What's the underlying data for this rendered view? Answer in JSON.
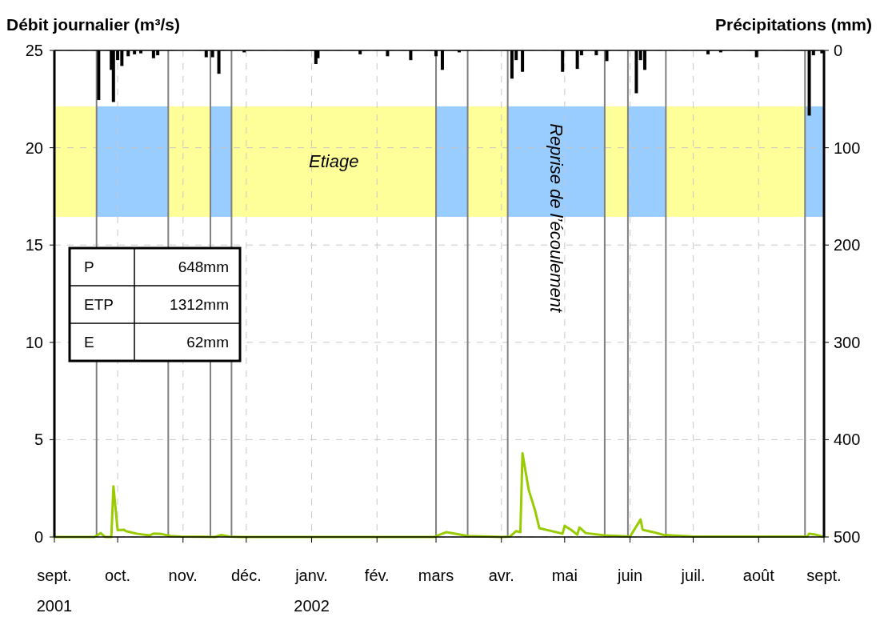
{
  "chart_data": {
    "type": "line",
    "ylabel": "Débit journalier (m³/s)",
    "y2label": "Précipitations (mm)",
    "xlim": [
      "2001-09-01",
      "2002-09-01"
    ],
    "xticks": [
      {
        "value": "2001-09-01",
        "label": "sept.\n2001"
      },
      {
        "value": "2001-10-01",
        "label": "oct."
      },
      {
        "value": "2001-11-01",
        "label": "nov."
      },
      {
        "value": "2001-12-01",
        "label": "déc."
      },
      {
        "value": "2002-01-01",
        "label": "janv.\n2002"
      },
      {
        "value": "2002-02-01",
        "label": "fév."
      },
      {
        "value": "2002-03-01",
        "label": "mars"
      },
      {
        "value": "2002-04-01",
        "label": "avr."
      },
      {
        "value": "2002-05-01",
        "label": "mai"
      },
      {
        "value": "2002-06-01",
        "label": "juin"
      },
      {
        "value": "2002-07-01",
        "label": "juil."
      },
      {
        "value": "2002-08-01",
        "label": "août"
      },
      {
        "value": "2002-09-01",
        "label": "sept."
      }
    ],
    "ylim": [
      0,
      25
    ],
    "yticks": [
      0,
      5,
      10,
      15,
      20,
      25
    ],
    "y2lim": [
      500,
      0
    ],
    "y2ticks": [
      0,
      100,
      200,
      300,
      400,
      500
    ],
    "grid": true,
    "series": [
      {
        "type": "bar",
        "axis": "y2",
        "color": "#000000",
        "x": [
          "2001-09-22",
          "2001-09-28",
          "2001-09-29",
          "2001-10-01",
          "2001-10-03",
          "2001-10-06",
          "2001-10-09",
          "2001-10-12",
          "2001-10-18",
          "2001-10-20",
          "2001-11-12",
          "2001-11-15",
          "2001-11-18",
          "2001-11-30",
          "2002-01-03",
          "2002-01-04",
          "2002-01-24",
          "2002-02-06",
          "2002-02-17",
          "2002-03-01",
          "2002-03-04",
          "2002-03-12",
          "2002-04-06",
          "2002-04-08",
          "2002-04-11",
          "2002-04-30",
          "2002-05-07",
          "2002-05-09",
          "2002-05-16",
          "2002-05-21",
          "2002-06-04",
          "2002-06-06",
          "2002-06-08",
          "2002-07-08",
          "2002-07-14",
          "2002-07-31",
          "2002-08-25",
          "2002-08-27",
          "2002-08-31"
        ],
        "values": [
          51,
          20,
          53,
          10,
          16,
          6,
          4,
          3,
          8,
          5,
          7,
          7,
          24,
          2,
          14,
          8,
          4,
          6,
          10,
          6,
          20,
          2,
          29,
          10,
          22,
          22,
          19,
          5,
          5,
          11,
          44,
          10,
          20,
          4,
          2,
          7,
          67,
          5,
          3
        ]
      },
      {
        "axis": "y",
        "color": "#99cc00",
        "x": [
          "2001-09-01",
          "2001-09-20",
          "2001-09-23",
          "2001-09-25",
          "2001-09-28",
          "2001-09-29",
          "2001-10-01",
          "2001-10-04",
          "2001-10-05",
          "2001-10-10",
          "2001-10-16",
          "2001-10-18",
          "2001-10-22",
          "2001-10-26",
          "2001-10-31",
          "2001-11-16",
          "2001-11-19",
          "2001-11-23",
          "2001-11-28",
          "2002-02-28",
          "2002-03-01",
          "2002-03-06",
          "2002-03-16",
          "2002-04-01",
          "2002-04-05",
          "2002-04-08",
          "2002-04-10",
          "2002-04-11",
          "2002-04-14",
          "2002-04-17",
          "2002-04-19",
          "2002-04-30",
          "2002-05-01",
          "2002-05-04",
          "2002-05-07",
          "2002-05-08",
          "2002-05-11",
          "2002-05-20",
          "2002-06-01",
          "2002-06-06",
          "2002-06-07",
          "2002-06-12",
          "2002-06-17",
          "2002-07-01",
          "2002-08-24",
          "2002-08-25",
          "2002-08-28",
          "2002-09-01"
        ],
        "values": [
          0,
          0,
          0.2,
          0,
          0,
          2.6,
          0.35,
          0.37,
          0.3,
          0.17,
          0.08,
          0.17,
          0.15,
          0.05,
          0.02,
          0,
          0.1,
          0.02,
          0,
          0,
          0.05,
          0.25,
          0.05,
          0,
          0.02,
          0.3,
          0.25,
          4.3,
          2.4,
          1.35,
          0.45,
          0.17,
          0.57,
          0.37,
          0.12,
          0.49,
          0.2,
          0.08,
          0.02,
          0.9,
          0.37,
          0.25,
          0.1,
          0.02,
          0.02,
          0.17,
          0.12,
          0
        ]
      }
    ],
    "bands": [
      {
        "axis": "x",
        "from": "2001-09-01",
        "to": "2001-09-21",
        "color": "#ffff99"
      },
      {
        "axis": "x",
        "from": "2001-09-21",
        "to": "2001-10-25",
        "color": "#99ccff"
      },
      {
        "axis": "x",
        "from": "2001-10-25",
        "to": "2001-11-14",
        "color": "#ffff99"
      },
      {
        "axis": "x",
        "from": "2001-11-14",
        "to": "2001-11-24",
        "color": "#99ccff"
      },
      {
        "axis": "x",
        "from": "2001-11-24",
        "to": "2002-03-01",
        "color": "#ffff99",
        "label": "Etiage"
      },
      {
        "axis": "x",
        "from": "2002-03-01",
        "to": "2002-03-16",
        "color": "#99ccff"
      },
      {
        "axis": "x",
        "from": "2002-03-16",
        "to": "2002-04-04",
        "color": "#ffff99"
      },
      {
        "axis": "x",
        "from": "2002-04-04",
        "to": "2002-05-20",
        "color": "#99ccff",
        "label": "Reprise de l’écoulement"
      },
      {
        "axis": "x",
        "from": "2002-05-20",
        "to": "2002-05-31",
        "color": "#ffff99"
      },
      {
        "axis": "x",
        "from": "2002-05-31",
        "to": "2002-06-18",
        "color": "#99ccff"
      },
      {
        "axis": "x",
        "from": "2002-06-18",
        "to": "2002-08-23",
        "color": "#ffff99"
      },
      {
        "axis": "x",
        "from": "2002-08-23",
        "to": "2002-09-01",
        "color": "#99ccff"
      }
    ],
    "annotations": [
      "P\t648mm",
      "ETP\t1312mm",
      "E\t62mm"
    ]
  }
}
